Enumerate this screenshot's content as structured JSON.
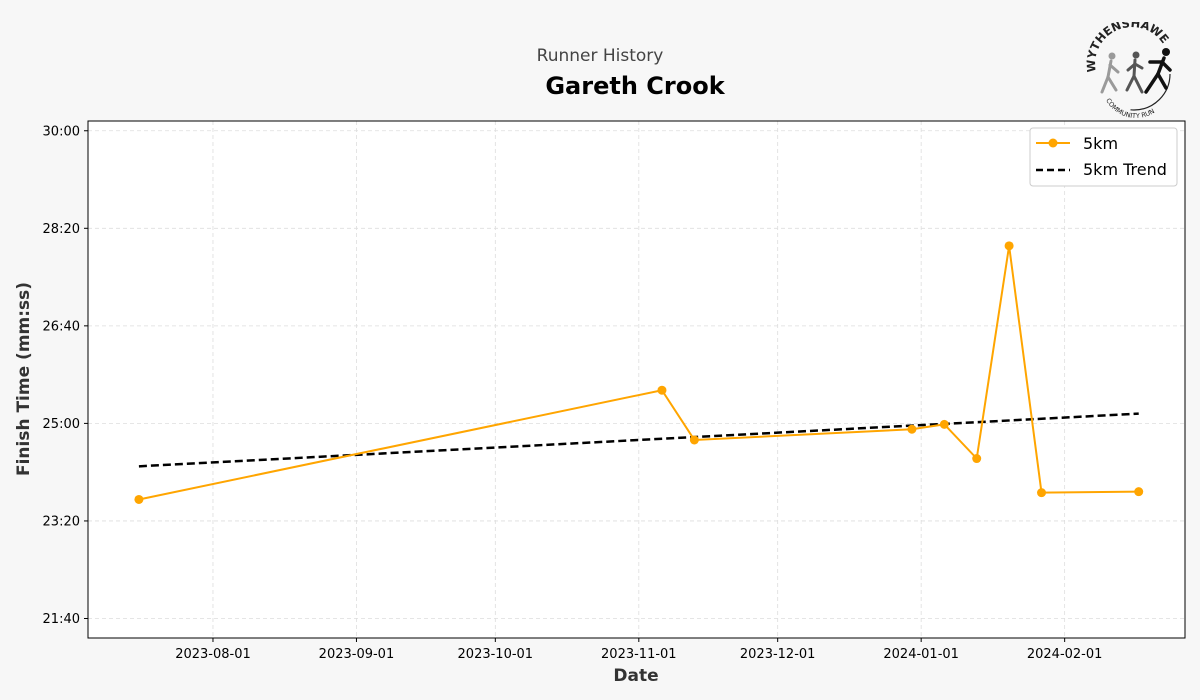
{
  "header": {
    "subtitle": "Runner History",
    "title": "Gareth Crook"
  },
  "logo": {
    "text_top": "WYTHENSHAWE",
    "text_bottom": "COMMUNITY RUN",
    "icon": "runners-logo"
  },
  "colors": {
    "series": "#ffa500",
    "trend": "#000000",
    "grid": "#dddddd"
  },
  "chart_data": {
    "type": "line",
    "title": "Gareth Crook",
    "subtitle": "Runner History",
    "xlabel": "Date",
    "ylabel": "Finish Time (mm:ss)",
    "xlim": [
      "2023-07-05",
      "2024-02-27"
    ],
    "ylim_seconds": [
      1280,
      1810
    ],
    "x_ticks": [
      "2023-08-01",
      "2023-09-01",
      "2023-10-01",
      "2023-11-01",
      "2023-12-01",
      "2024-01-01",
      "2024-02-01"
    ],
    "y_ticks": [
      "21:40",
      "23:20",
      "25:00",
      "26:40",
      "28:20",
      "30:00"
    ],
    "grid": true,
    "legend_position": "top-right",
    "series": [
      {
        "name": "5km",
        "style": "line-marker",
        "points": [
          {
            "x": "2023-07-16",
            "y": "23:42"
          },
          {
            "x": "2023-11-06",
            "y": "25:34"
          },
          {
            "x": "2023-11-13",
            "y": "24:43"
          },
          {
            "x": "2023-12-30",
            "y": "24:54"
          },
          {
            "x": "2024-01-06",
            "y": "24:59"
          },
          {
            "x": "2024-01-13",
            "y": "24:24"
          },
          {
            "x": "2024-01-20",
            "y": "28:02"
          },
          {
            "x": "2024-01-27",
            "y": "23:49"
          },
          {
            "x": "2024-02-17",
            "y": "23:50"
          }
        ]
      },
      {
        "name": "5km Trend",
        "style": "dashed",
        "points": [
          {
            "x": "2023-07-16",
            "y": "24:16"
          },
          {
            "x": "2024-02-17",
            "y": "25:10"
          }
        ]
      }
    ]
  }
}
